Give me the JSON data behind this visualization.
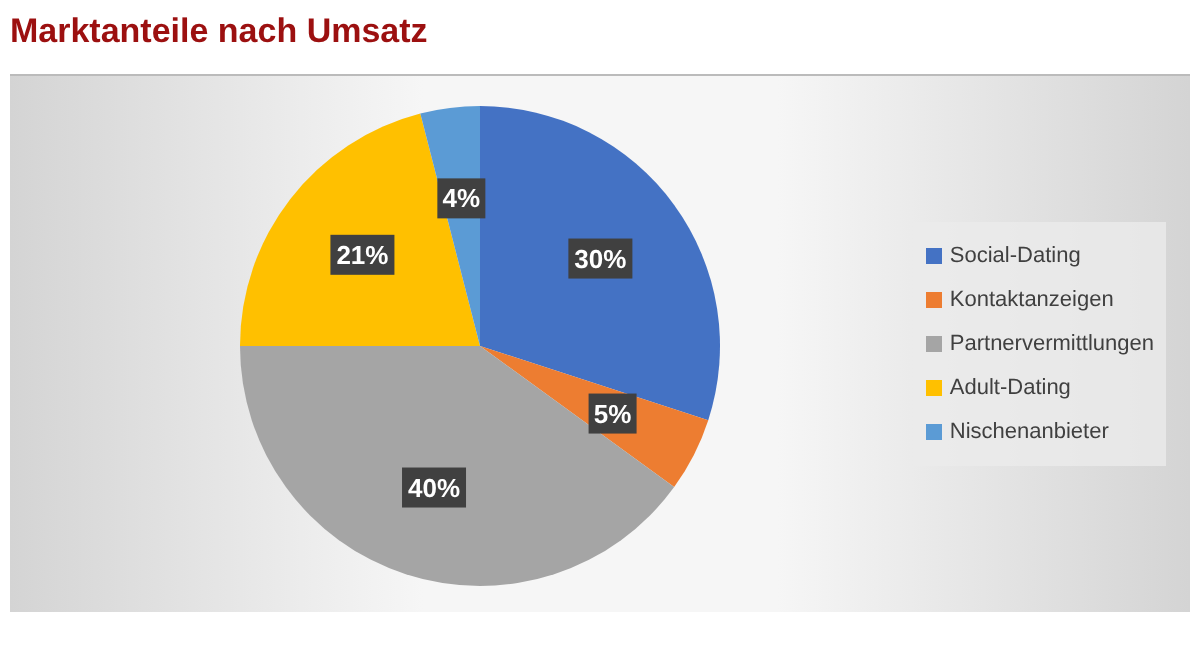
{
  "chart_data": {
    "type": "pie",
    "title": "Marktanteile nach Umsatz",
    "categories": [
      "Social-Dating",
      "Kontaktanzeigen",
      "Partnervermittlungen",
      "Adult-Dating",
      "Nischenanbieter"
    ],
    "values": [
      30,
      5,
      40,
      21,
      4
    ],
    "colors": [
      "#4472c4",
      "#ed7d31",
      "#a5a5a5",
      "#ffc000",
      "#5b9bd5"
    ],
    "value_labels": [
      "30%",
      "5%",
      "40%",
      "21%",
      "4%"
    ],
    "legend": "right"
  }
}
